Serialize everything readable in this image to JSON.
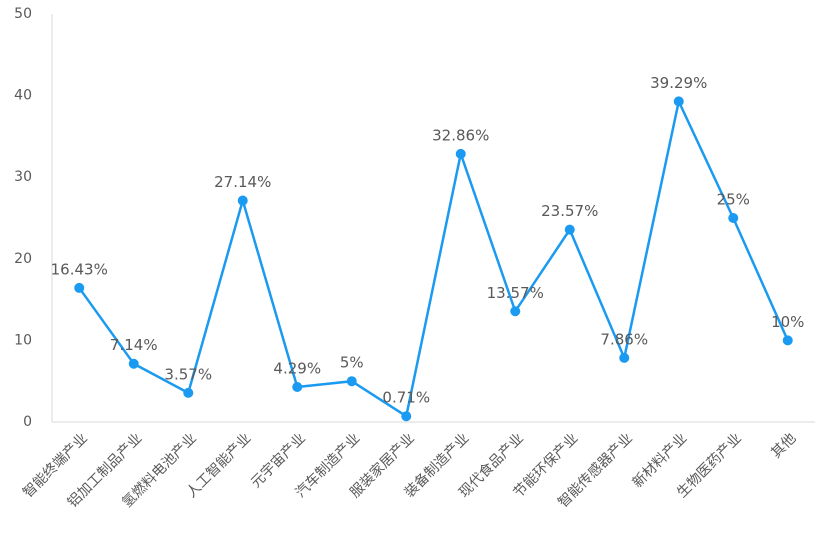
{
  "chart_data": {
    "type": "line",
    "categories": [
      "智能终端产业",
      "铝加工制品产业",
      "氢燃料电池产业",
      "人工智能产业",
      "元宇宙产业",
      "汽车制造产业",
      "服装家居产业",
      "装备制造产业",
      "现代食品产业",
      "节能环保产业",
      "智能传感器产业",
      "新材料产业",
      "生物医药产业",
      "其他"
    ],
    "series": [
      {
        "name": null,
        "color": "#1a9af0",
        "values": [
          16.43,
          7.14,
          3.57,
          27.14,
          4.29,
          5,
          0.71,
          32.86,
          13.57,
          23.57,
          7.86,
          39.29,
          25,
          10
        ],
        "value_labels": [
          "16.43%",
          "7.14%",
          "3.57%",
          "27.14%",
          "4.29%",
          "5%",
          "0.71%",
          "32.86%",
          "13.57%",
          "23.57%",
          "7.86%",
          "39.29%",
          "25%",
          "10%"
        ]
      }
    ],
    "ylim": [
      0,
      50
    ],
    "yticks": [
      0,
      10,
      20,
      30,
      40,
      50
    ],
    "grid": false
  }
}
